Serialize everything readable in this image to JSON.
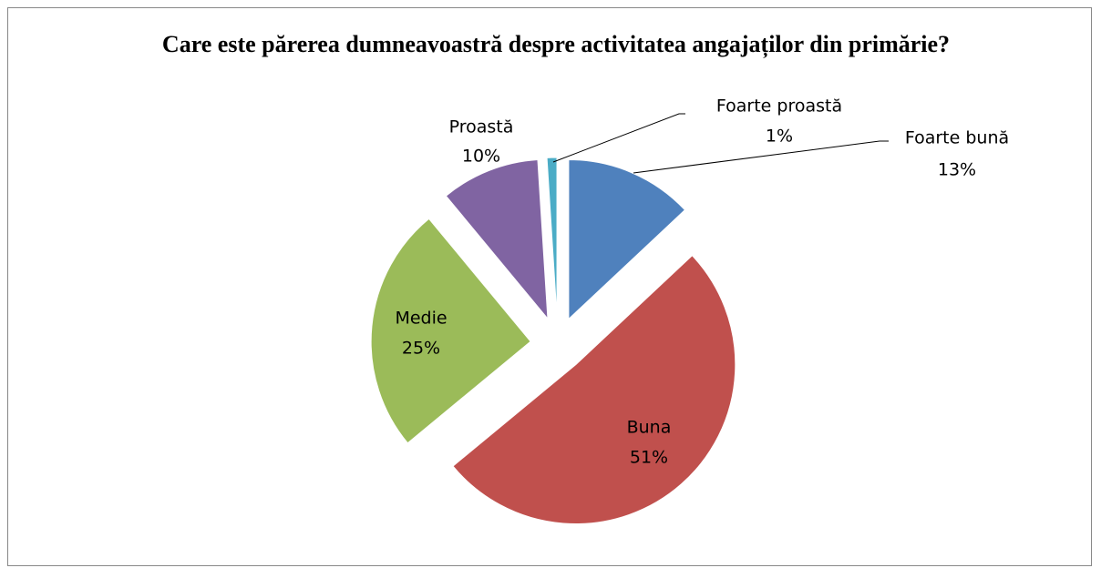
{
  "chart_data": {
    "type": "pie",
    "title": "Care este părerea dumneavoastră despre activitatea angajaților din primărie?",
    "categories": [
      "Foarte bună",
      "Buna",
      "Medie",
      "Proastă",
      "Foarte proastă"
    ],
    "values": [
      13,
      51,
      25,
      10,
      1
    ],
    "value_labels": [
      "13%",
      "51%",
      "25%",
      "10%",
      "1%"
    ],
    "colors": [
      "#4f81bd",
      "#c0504d",
      "#9bbb59",
      "#8064a2",
      "#4bacc6"
    ]
  }
}
